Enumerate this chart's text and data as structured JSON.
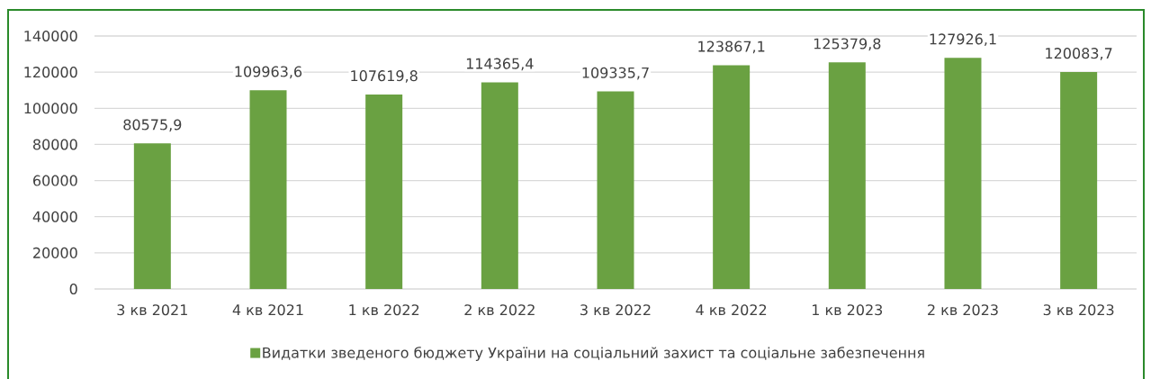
{
  "chart_data": {
    "type": "bar",
    "categories": [
      "3 кв 2021",
      "4 кв 2021",
      "1 кв 2022",
      "2 кв 2022",
      "3 кв 2022",
      "4 кв 2022",
      "1 кв 2023",
      "2 кв 2023",
      "3 кв 2023"
    ],
    "series": [
      {
        "name": "Видатки зведеного бюджету України на соціальний захист та соціальне забезпечення",
        "color": "#6aa142",
        "values": [
          80575.9,
          109963.6,
          107619.8,
          114365.4,
          109335.7,
          123867.1,
          125379.8,
          127926.1,
          120083.7
        ],
        "value_labels": [
          "80575,9",
          "109963,6",
          "107619,8",
          "114365,4",
          "109335,7",
          "123867,1",
          "125379,8",
          "127926,1",
          "120083,7"
        ]
      }
    ],
    "ylim": [
      0,
      140000
    ],
    "yticks": [
      0,
      20000,
      40000,
      60000,
      80000,
      100000,
      120000,
      140000
    ],
    "grid": "y",
    "legend": "bottom"
  }
}
